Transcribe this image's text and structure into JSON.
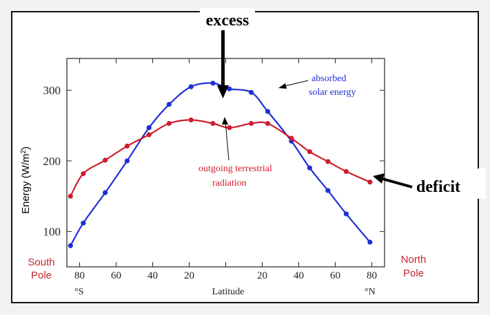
{
  "chart_data": {
    "type": "line",
    "title": "",
    "ylabel": "Energy (W/m",
    "ylabel_sup": "2",
    "ylabel_close": ")",
    "xlabel": "Latitude",
    "x_tick_labels": [
      "80",
      "60",
      "40",
      "20",
      "",
      "20",
      "40",
      "60",
      "80"
    ],
    "x_tick_values": [
      -80,
      -60,
      -40,
      -20,
      0,
      20,
      40,
      60,
      80
    ],
    "x_end_labels": {
      "left": "°S",
      "right": "°N"
    },
    "xlim": [
      -87,
      87
    ],
    "ylim": [
      50,
      345
    ],
    "y_ticks": [
      100,
      200,
      300
    ],
    "pole_labels": {
      "south_line1": "South",
      "south_line2": "Pole",
      "north_line1": "North",
      "north_line2": "Pole"
    },
    "series": [
      {
        "key": "absorbed",
        "color": "#1f2fd6",
        "x": [
          -85,
          -78,
          -66,
          -54,
          -42,
          -31,
          -19,
          -7,
          2,
          14,
          23,
          36,
          46,
          56,
          66,
          79
        ],
        "y": [
          80,
          112,
          155,
          200,
          247,
          280,
          305,
          310,
          302,
          297,
          270,
          228,
          190,
          158,
          125,
          85
        ]
      },
      {
        "key": "outgoing",
        "color": "#d01c2e",
        "x": [
          -85,
          -78,
          -66,
          -54,
          -42,
          -31,
          -19,
          -7,
          2,
          14,
          23,
          36,
          46,
          56,
          66,
          79
        ],
        "y": [
          150,
          182,
          201,
          221,
          237,
          253,
          258,
          253,
          247,
          253,
          253,
          232,
          213,
          199,
          185,
          170
        ]
      }
    ],
    "annotations": {
      "absorbed_line1": "absorbed",
      "absorbed_line2": "solar energy",
      "outgoing_line1": "outgoing terrestrial",
      "outgoing_line2": "radiation",
      "excess": "excess",
      "deficit": "deficit"
    }
  }
}
